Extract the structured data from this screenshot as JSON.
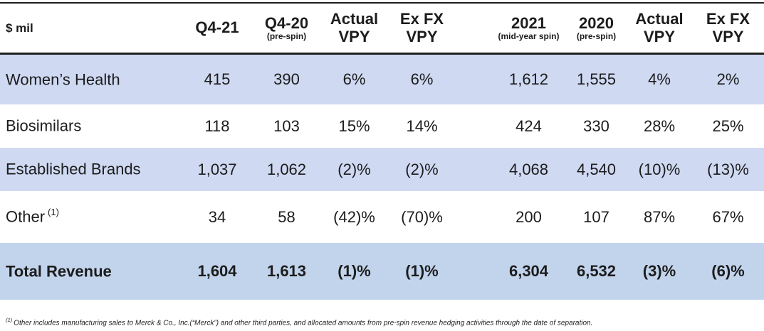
{
  "units_label": "$ mil",
  "columns": [
    {
      "line1": "Q4-21",
      "line2": "",
      "sub": ""
    },
    {
      "line1": "Q4-20",
      "line2": "",
      "sub": "(pre-spin)"
    },
    {
      "line1": "Actual",
      "line2": "VPY",
      "sub": ""
    },
    {
      "line1": "Ex FX",
      "line2": "VPY",
      "sub": ""
    },
    {
      "line1": "2021",
      "line2": "",
      "sub": "(mid-year spin)"
    },
    {
      "line1": "2020",
      "line2": "",
      "sub": "(pre-spin)"
    },
    {
      "line1": "Actual",
      "line2": "VPY",
      "sub": ""
    },
    {
      "line1": "Ex FX",
      "line2": "VPY",
      "sub": ""
    }
  ],
  "rows": [
    {
      "label": "Women’s Health",
      "label_sup": "",
      "values": [
        "415",
        "390",
        "6%",
        "6%",
        "1,612",
        "1,555",
        "4%",
        "2%"
      ]
    },
    {
      "label": "Biosimilars",
      "label_sup": "",
      "values": [
        "118",
        "103",
        "15%",
        "14%",
        "424",
        "330",
        "28%",
        "25%"
      ]
    },
    {
      "label": "Established Brands",
      "label_sup": "",
      "values": [
        "1,037",
        "1,062",
        "(2)%",
        "(2)%",
        "4,068",
        "4,540",
        "(10)%",
        "(13)%"
      ]
    },
    {
      "label": "Other",
      "label_sup": "(1)",
      "values": [
        "34",
        "58",
        "(42)%",
        "(70)%",
        "200",
        "107",
        "87%",
        "67%"
      ]
    },
    {
      "label": "Total Revenue",
      "label_sup": "",
      "values": [
        "1,604",
        "1,613",
        "(1)%",
        "(1)%",
        "6,304",
        "6,532",
        "(3)%",
        "(6)%"
      ]
    }
  ],
  "footnote": {
    "sup": "(1)",
    "text": "Other includes manufacturing sales to Merck & Co., Inc.(“Merck”) and other third parties, and allocated amounts from pre-spin revenue hedging activities through the date of separation."
  },
  "colors": {
    "highlight_row": "#cfd9f2",
    "total_row": "#c2d4ec",
    "rule": "#1f1f1f"
  }
}
